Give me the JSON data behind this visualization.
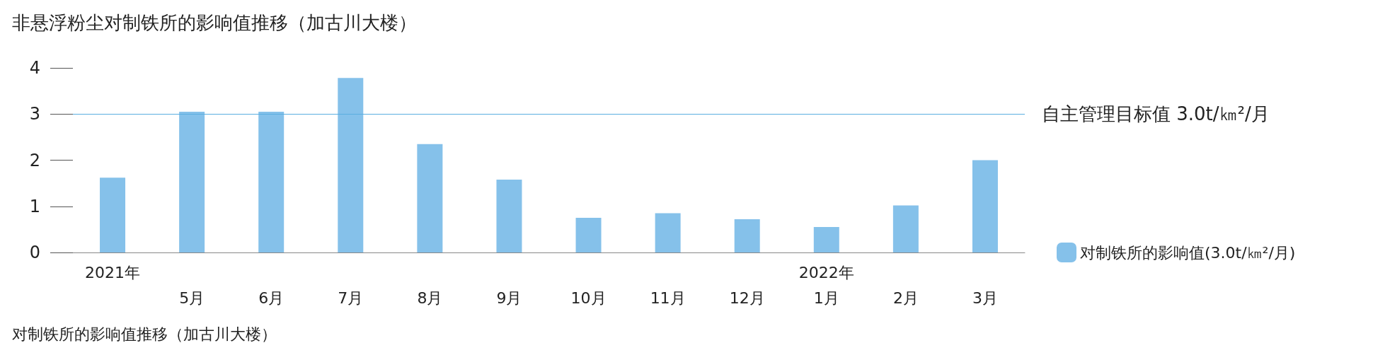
{
  "chart_data": {
    "type": "bar",
    "title": "非悬浮粉尘对制铁所的影响值推移（加古川大楼）",
    "categories": [
      "2021年\n",
      "\n5月",
      "\n6月",
      "\n7月",
      "\n8月",
      "\n9月",
      "\n10月",
      "\n11月",
      "\n12月",
      "2022年\n1月",
      "\n2月",
      "\n3月"
    ],
    "series": [
      {
        "name": "对制铁所的影响值(3.0t/㎞²/月)",
        "color": "#85c1ea",
        "values": [
          1.62,
          3.05,
          3.05,
          3.78,
          2.35,
          1.58,
          0.75,
          0.85,
          0.72,
          0.55,
          1.02,
          2.0
        ]
      }
    ],
    "ylim": [
      0,
      4
    ],
    "yticks": [
      0,
      1,
      2,
      3,
      4
    ],
    "grid": false,
    "legend": "right",
    "ref_lines": [
      {
        "axis": "y",
        "value": 3,
        "label": "自主管理目标值 3.0t/㎞²/月",
        "color": "#5aaee0"
      }
    ],
    "annotations": [
      "对制铁所的影响值推移（加古川大楼）"
    ]
  }
}
